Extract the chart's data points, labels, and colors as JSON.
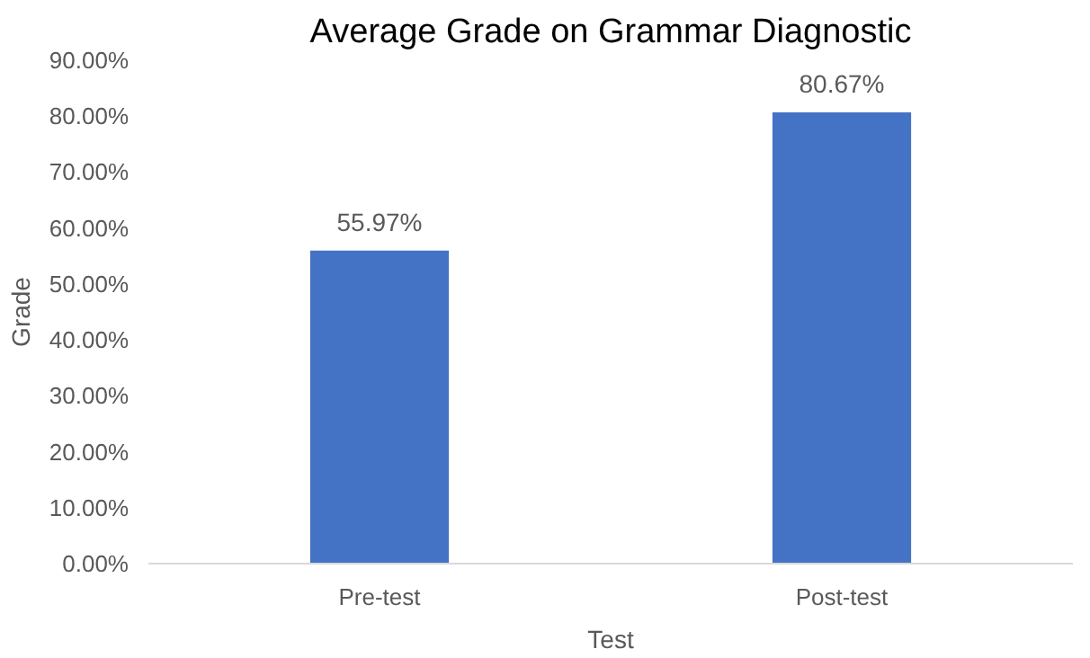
{
  "chart_data": {
    "type": "bar",
    "title": "Average Grade on Grammar Diagnostic",
    "xlabel": "Test",
    "ylabel": "Grade",
    "categories": [
      "Pre-test",
      "Post-test"
    ],
    "values": [
      55.97,
      80.67
    ],
    "color": "#4472c4",
    "value_labels": [
      "55.97%",
      "80.67%"
    ],
    "ylim": [
      0,
      90
    ],
    "yticks": [
      {
        "value": 0,
        "label": "0.00%"
      },
      {
        "value": 10,
        "label": "10.00%"
      },
      {
        "value": 20,
        "label": "20.00%"
      },
      {
        "value": 30,
        "label": "30.00%"
      },
      {
        "value": 40,
        "label": "40.00%"
      },
      {
        "value": 50,
        "label": "50.00%"
      },
      {
        "value": 60,
        "label": "60.00%"
      },
      {
        "value": 70,
        "label": "70.00%"
      },
      {
        "value": 80,
        "label": "80.00%"
      },
      {
        "value": 90,
        "label": "90.00%"
      }
    ],
    "grid": false
  }
}
